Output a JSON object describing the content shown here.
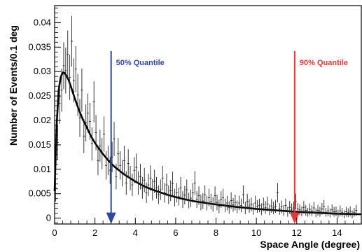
{
  "chart_data": {
    "type": "scatter",
    "xlabel": "Space Angle (degree)",
    "ylabel": "Number of Events/0.1 deg",
    "xlim": [
      0,
      15.2
    ],
    "ylim": [
      -0.0012,
      0.0435
    ],
    "x_ticks": [
      "0",
      "2",
      "4",
      "6",
      "8",
      "10",
      "12",
      "14"
    ],
    "x_tick_values": [
      0,
      2,
      4,
      6,
      8,
      10,
      12,
      14
    ],
    "y_ticks": [
      "0",
      "0.005",
      "0.01",
      "0.015",
      "0.02",
      "0.025",
      "0.03",
      "0.035",
      "0.04"
    ],
    "y_tick_values": [
      0,
      0.005,
      0.01,
      0.015,
      0.02,
      0.025,
      0.03,
      0.035,
      0.04
    ],
    "grid": false,
    "series": [
      {
        "type": "points_with_error_bars",
        "x": [
          0.05,
          0.15,
          0.25,
          0.35,
          0.45,
          0.55,
          0.65,
          0.75,
          0.85,
          0.95,
          1.05,
          1.15,
          1.25,
          1.35,
          1.45,
          1.55,
          1.65,
          1.75,
          1.85,
          1.95,
          2.05,
          2.15,
          2.25,
          2.35,
          2.45,
          2.55,
          2.65,
          2.75,
          2.85,
          2.95,
          3.05,
          3.15,
          3.25,
          3.35,
          3.45,
          3.55,
          3.65,
          3.75,
          3.85,
          3.95,
          4.05,
          4.15,
          4.25,
          4.35,
          4.45,
          4.55,
          4.65,
          4.75,
          4.85,
          4.95,
          5.05,
          5.15,
          5.25,
          5.35,
          5.45,
          5.55,
          5.65,
          5.75,
          5.85,
          5.95,
          6.05,
          6.15,
          6.25,
          6.35,
          6.45,
          6.55,
          6.65,
          6.75,
          6.85,
          6.95,
          7.05,
          7.15,
          7.25,
          7.35,
          7.45,
          7.55,
          7.65,
          7.75,
          7.85,
          7.95,
          8.05,
          8.15,
          8.25,
          8.35,
          8.45,
          8.55,
          8.65,
          8.75,
          8.85,
          8.95,
          9.05,
          9.15,
          9.25,
          9.35,
          9.45,
          9.55,
          9.65,
          9.75,
          9.85,
          9.95,
          10.05,
          10.15,
          10.25,
          10.35,
          10.45,
          10.55,
          10.65,
          10.75,
          10.85,
          10.95,
          11.05,
          11.15,
          11.25,
          11.35,
          11.45,
          11.55,
          11.65,
          11.75,
          11.85,
          11.95,
          12.05,
          12.15,
          12.25,
          12.35,
          12.45,
          12.55,
          12.65,
          12.75,
          12.85,
          12.95,
          13.05,
          13.15,
          13.25,
          13.35,
          13.45,
          13.55,
          13.65,
          13.75,
          13.85,
          13.95,
          14.05,
          14.15,
          14.25,
          14.35,
          14.45,
          14.55,
          14.65,
          14.75,
          14.85,
          14.95
        ],
        "y": [
          0.0062,
          0.0155,
          0.0235,
          0.0262,
          0.0312,
          0.0302,
          0.0335,
          0.0288,
          0.0362,
          0.0282,
          0.0305,
          0.0252,
          0.0205,
          0.0262,
          0.0168,
          0.0195,
          0.0215,
          0.0198,
          0.0152,
          0.0238,
          0.0175,
          0.0118,
          0.0148,
          0.0132,
          0.0172,
          0.0108,
          0.0118,
          0.0098,
          0.0125,
          0.0162,
          0.0085,
          0.0132,
          0.0108,
          0.0092,
          0.0118,
          0.0072,
          0.0112,
          0.0082,
          0.0068,
          0.0098,
          0.0104,
          0.0072,
          0.0085,
          0.0062,
          0.0078,
          0.0052,
          0.0068,
          0.0082,
          0.0058,
          0.0075,
          0.0062,
          0.0048,
          0.0058,
          0.0082,
          0.0052,
          0.0068,
          0.0048,
          0.0056,
          0.0071,
          0.0042,
          0.0052,
          0.0044,
          0.0062,
          0.0038,
          0.0047,
          0.0058,
          0.0036,
          0.0041,
          0.0052,
          0.0072,
          0.0038,
          0.0046,
          0.0032,
          0.0035,
          0.0048,
          0.0031,
          0.0042,
          0.0034,
          0.0028,
          0.0046,
          0.0032,
          0.0024,
          0.0038,
          0.0042,
          0.0026,
          0.0031,
          0.0022,
          0.0036,
          0.0027,
          0.0032,
          0.0023,
          0.0031,
          0.0026,
          0.0048,
          0.0021,
          0.0034,
          0.0025,
          0.0028,
          0.0019,
          0.0031,
          0.0024,
          0.0026,
          0.0018,
          0.0028,
          0.0022,
          0.0029,
          0.0017,
          0.0025,
          0.0021,
          0.0024,
          0.0052,
          0.0019,
          0.0023,
          0.0016,
          0.0026,
          0.0013,
          0.0022,
          0.0018,
          0.0021,
          0.0034,
          0.0019,
          0.0017,
          0.0014,
          0.0022,
          0.0016,
          0.0012,
          0.0018,
          0.0015,
          0.0021,
          0.0011,
          0.0016,
          0.0013,
          0.0019,
          0.0024,
          0.0012,
          0.0015,
          0.0011,
          0.0017,
          0.0013,
          0.0014,
          0.0009,
          0.0015,
          0.0012,
          0.0008,
          0.0013,
          0.0011,
          0.0014,
          0.0008,
          0.0012,
          0.0016
        ],
        "yerr": [
          0.0028,
          0.0036,
          0.0042,
          0.0044,
          0.0048,
          0.0047,
          0.0049,
          0.0046,
          0.0052,
          0.0045,
          0.0047,
          0.0043,
          0.0039,
          0.0044,
          0.0035,
          0.0038,
          0.004,
          0.0038,
          0.0034,
          0.0042,
          0.0036,
          0.003,
          0.0033,
          0.0032,
          0.0036,
          0.0029,
          0.003,
          0.0028,
          0.0031,
          0.0035,
          0.0026,
          0.0032,
          0.0029,
          0.0027,
          0.003,
          0.0024,
          0.0029,
          0.0025,
          0.0023,
          0.0027,
          0.0028,
          0.0024,
          0.0026,
          0.0022,
          0.0025,
          0.0021,
          0.0023,
          0.0026,
          0.0022,
          0.0024,
          0.0022,
          0.0019,
          0.0021,
          0.0025,
          0.002,
          0.0023,
          0.0019,
          0.0021,
          0.0024,
          0.0018,
          0.002,
          0.0018,
          0.0022,
          0.0017,
          0.0019,
          0.0021,
          0.0016,
          0.0018,
          0.002,
          0.0024,
          0.0017,
          0.0019,
          0.0016,
          0.0016,
          0.0019,
          0.0015,
          0.0018,
          0.0016,
          0.0015,
          0.0019,
          0.0016,
          0.0014,
          0.0017,
          0.0018,
          0.0014,
          0.0015,
          0.0013,
          0.0017,
          0.0014,
          0.0016,
          0.0013,
          0.0015,
          0.0014,
          0.0019,
          0.0013,
          0.0016,
          0.0014,
          0.0014,
          0.0012,
          0.0015,
          0.0013,
          0.0014,
          0.0012,
          0.0014,
          0.0013,
          0.0015,
          0.0011,
          0.0014,
          0.0013,
          0.0013,
          0.002,
          0.0012,
          0.0013,
          0.0011,
          0.0014,
          0.001,
          0.0013,
          0.0012,
          0.0013,
          0.0016,
          0.0012,
          0.0011,
          0.001,
          0.0013,
          0.0011,
          0.0009,
          0.0012,
          0.0011,
          0.0012,
          0.0009,
          0.0011,
          0.001,
          0.0012,
          0.0013,
          0.0009,
          0.0011,
          0.0009,
          0.0011,
          0.001,
          0.001,
          0.0008,
          0.0011,
          0.0009,
          0.0008,
          0.001,
          0.0009,
          0.001,
          0.0008,
          0.0009,
          0.0011
        ]
      },
      {
        "type": "fit_curve",
        "x": [
          0,
          0.1,
          0.2,
          0.3,
          0.4,
          0.5,
          0.6,
          0.7,
          0.8,
          1.0,
          1.2,
          1.4,
          1.6,
          1.8,
          2.0,
          2.2,
          2.5,
          2.8,
          3.0,
          3.5,
          4.0,
          4.5,
          5.0,
          5.5,
          6.0,
          6.5,
          7.0,
          7.5,
          8.0,
          9.0,
          10.0,
          11.0,
          12.0,
          13.0,
          14.0,
          15.0,
          15.2
        ],
        "y": [
          0.0055,
          0.019,
          0.0262,
          0.0288,
          0.0298,
          0.0297,
          0.029,
          0.0282,
          0.027,
          0.0245,
          0.0222,
          0.0202,
          0.0185,
          0.0168,
          0.0154,
          0.0142,
          0.0126,
          0.0112,
          0.0104,
          0.0088,
          0.0075,
          0.0064,
          0.0056,
          0.0049,
          0.0043,
          0.0038,
          0.0034,
          0.0031,
          0.0028,
          0.0023,
          0.0019,
          0.0016,
          0.0013,
          0.0011,
          0.0009,
          0.0008,
          0.0008
        ]
      }
    ],
    "annotations": [
      {
        "label": "50% Quantile",
        "x": 2.8,
        "color": "#2c49a5"
      },
      {
        "label": "90% Quantile",
        "x": 11.9,
        "color": "#e53935"
      }
    ]
  }
}
